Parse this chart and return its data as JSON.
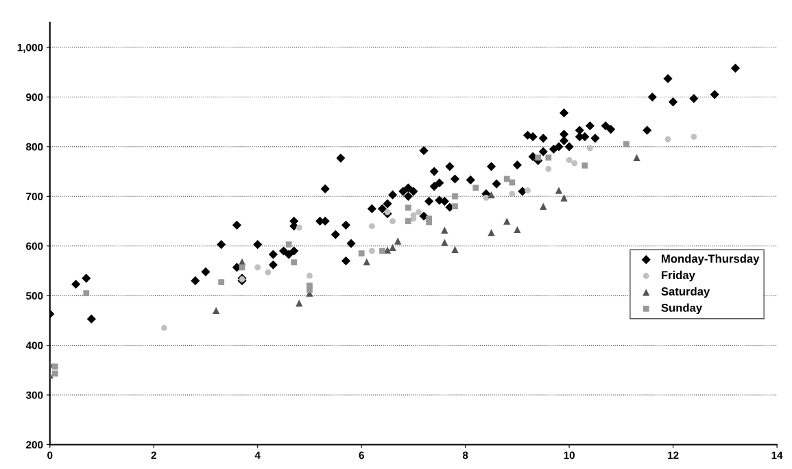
{
  "chart_data": {
    "type": "scatter",
    "xlim": [
      0,
      14
    ],
    "xticks": [
      0,
      2,
      4,
      6,
      8,
      10,
      12,
      14
    ],
    "ylim": [
      200,
      1050
    ],
    "yticks": [
      {
        "value": 200,
        "label": "200"
      },
      {
        "value": 300,
        "label": "300"
      },
      {
        "value": 400,
        "label": "400"
      },
      {
        "value": 500,
        "label": "500"
      },
      {
        "value": 600,
        "label": "600"
      },
      {
        "value": 700,
        "label": "700"
      },
      {
        "value": 800,
        "label": "800"
      },
      {
        "value": 900,
        "label": "900"
      },
      {
        "value": 1000,
        "label": "1,000"
      }
    ],
    "grid": "y",
    "legend": "right",
    "series": [
      {
        "name": "Monday-Thursday",
        "color": "#000000",
        "marker": "diamond",
        "x": [
          0,
          0.5,
          0.7,
          0.8,
          2.8,
          3.0,
          3.3,
          3.6,
          3.6,
          3.7,
          3.7,
          4.0,
          4.3,
          4.3,
          4.5,
          4.6,
          4.7,
          4.7,
          4.7,
          5.2,
          5.3,
          5.3,
          5.5,
          5.6,
          5.7,
          5.7,
          5.8,
          6.2,
          6.4,
          6.5,
          6.5,
          6.6,
          6.8,
          6.9,
          6.9,
          7.0,
          7.2,
          7.2,
          7.3,
          7.4,
          7.4,
          7.5,
          7.5,
          7.6,
          7.7,
          7.7,
          7.8,
          8.1,
          8.4,
          8.5,
          8.6,
          9.0,
          9.1,
          9.2,
          9.3,
          9.3,
          9.4,
          9.5,
          9.5,
          9.7,
          9.8,
          9.9,
          9.9,
          9.9,
          10.0,
          10.2,
          10.2,
          10.3,
          10.4,
          10.5,
          10.7,
          10.8,
          11.5,
          11.6,
          11.9,
          12.0,
          12.4,
          12.8,
          13.2
        ],
        "values": [
          463,
          523,
          535,
          453,
          530,
          548,
          603,
          557,
          642,
          535,
          530,
          603,
          562,
          583,
          590,
          583,
          640,
          650,
          590,
          650,
          715,
          650,
          623,
          777,
          642,
          570,
          605,
          675,
          675,
          685,
          665,
          703,
          710,
          717,
          700,
          710,
          792,
          660,
          690,
          720,
          750,
          727,
          692,
          690,
          760,
          678,
          735,
          733,
          705,
          760,
          725,
          763,
          710,
          823,
          780,
          820,
          772,
          817,
          790,
          795,
          800,
          868,
          825,
          812,
          800,
          820,
          833,
          820,
          842,
          817,
          842,
          835,
          833,
          900,
          937,
          890,
          897,
          905,
          958
        ]
      },
      {
        "name": "Friday",
        "color": "#c0c0c0",
        "marker": "circle",
        "x": [
          2.2,
          3.7,
          4.0,
          4.2,
          4.8,
          5.0,
          6.2,
          6.2,
          6.5,
          6.6,
          7.0,
          7.0,
          7.1,
          8.4,
          8.9,
          9.2,
          9.6,
          10.0,
          10.1,
          10.4,
          11.9,
          12.4
        ],
        "values": [
          435,
          533,
          557,
          547,
          637,
          540,
          640,
          590,
          668,
          650,
          662,
          655,
          668,
          697,
          705,
          712,
          755,
          773,
          767,
          797,
          815,
          820
        ]
      },
      {
        "name": "Saturday",
        "color": "#555555",
        "marker": "triangle",
        "x": [
          0,
          0,
          3.2,
          3.7,
          4.8,
          5.0,
          6.1,
          6.5,
          6.6,
          6.7,
          7.6,
          7.6,
          7.8,
          8.5,
          8.5,
          8.8,
          9.0,
          9.5,
          9.8,
          9.9,
          11.3
        ],
        "values": [
          362,
          340,
          470,
          568,
          485,
          505,
          568,
          592,
          597,
          610,
          632,
          607,
          593,
          627,
          703,
          650,
          633,
          680,
          712,
          697,
          778
        ]
      },
      {
        "name": "Sunday",
        "color": "#999999",
        "marker": "square",
        "x": [
          0.1,
          0.1,
          0.7,
          3.3,
          3.7,
          4.6,
          4.7,
          5.0,
          5.0,
          6.0,
          6.4,
          6.9,
          6.9,
          7.3,
          7.3,
          7.8,
          7.8,
          8.2,
          8.8,
          8.9,
          9.4,
          9.6,
          10.3,
          11.1
        ],
        "values": [
          357,
          343,
          505,
          527,
          557,
          603,
          567,
          520,
          512,
          585,
          590,
          677,
          650,
          655,
          648,
          700,
          680,
          717,
          735,
          728,
          778,
          778,
          762,
          805
        ]
      }
    ]
  }
}
